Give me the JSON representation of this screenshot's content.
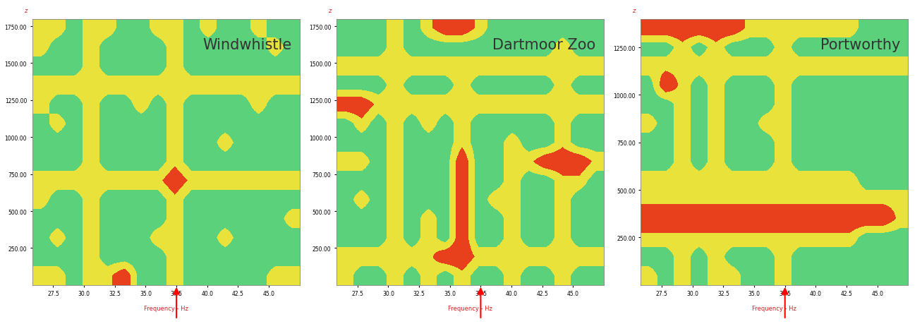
{
  "chart_data": [
    {
      "type": "heatmap",
      "title": "Windwhistle",
      "x_label": "Frequency - Hz",
      "y_label": "z",
      "xlim": [
        25.8,
        47.5
      ],
      "ylim": [
        0,
        1800
      ],
      "xticks": [
        27.5,
        {
          "value": 30,
          "label": "30.0"
        },
        32.5,
        {
          "value": 35,
          "label": "35.0"
        },
        37.5,
        {
          "value": 40,
          "label": "40.0"
        },
        42.5,
        {
          "value": 45,
          "label": "45.0"
        }
      ],
      "yticks": [
        {
          "value": 250,
          "label": "250.00"
        },
        {
          "value": 500,
          "label": "500.00"
        },
        {
          "value": 750,
          "label": "750.00"
        },
        {
          "value": 1000,
          "label": "1000.00"
        },
        {
          "value": 1250,
          "label": "1250.00"
        },
        {
          "value": 1500,
          "label": "1500.00"
        },
        {
          "value": 1750,
          "label": "1750.00"
        }
      ],
      "colors": [
        "#2a6fd6",
        "#5ad17a",
        "#e8e23a",
        "#e8401c"
      ],
      "clim": [
        0,
        3
      ],
      "arrow_x": 37.5,
      "cells": [
        [
          2,
          2,
          1,
          2,
          2,
          3,
          1,
          1,
          2,
          1,
          1,
          1,
          1,
          1,
          2,
          2
        ],
        [
          1,
          1,
          1,
          2,
          1,
          1,
          1,
          1,
          2,
          1,
          1,
          1,
          1,
          1,
          1,
          1
        ],
        [
          1,
          2,
          1,
          2,
          1,
          1,
          1,
          2,
          2,
          1,
          1,
          2,
          1,
          1,
          1,
          1
        ],
        [
          1,
          1,
          1,
          2,
          1,
          1,
          1,
          1,
          2,
          1,
          1,
          1,
          1,
          1,
          1,
          2
        ],
        [
          2,
          1,
          1,
          2,
          1,
          1,
          1,
          1,
          2,
          1,
          1,
          1,
          1,
          1,
          1,
          1
        ],
        [
          2,
          2,
          2,
          2,
          2,
          2,
          2,
          2,
          3,
          2,
          2,
          2,
          2,
          2,
          2,
          2
        ],
        [
          1,
          1,
          1,
          2,
          1,
          1,
          1,
          1,
          2,
          1,
          1,
          1,
          1,
          1,
          1,
          1
        ],
        [
          1,
          1,
          1,
          2,
          1,
          1,
          1,
          1,
          2,
          1,
          1,
          2,
          1,
          1,
          1,
          1
        ],
        [
          1,
          2,
          1,
          2,
          1,
          1,
          1,
          1,
          2,
          1,
          1,
          1,
          1,
          1,
          1,
          1
        ],
        [
          2,
          1,
          1,
          2,
          1,
          1,
          2,
          1,
          2,
          1,
          1,
          1,
          1,
          2,
          1,
          1
        ],
        [
          2,
          2,
          2,
          2,
          2,
          2,
          2,
          2,
          2,
          2,
          2,
          2,
          2,
          2,
          2,
          2
        ],
        [
          1,
          1,
          1,
          2,
          1,
          1,
          1,
          1,
          2,
          1,
          1,
          1,
          1,
          1,
          1,
          1
        ],
        [
          2,
          1,
          1,
          2,
          1,
          1,
          1,
          1,
          2,
          1,
          1,
          1,
          1,
          1,
          2,
          1
        ],
        [
          2,
          2,
          1,
          2,
          2,
          1,
          1,
          2,
          2,
          1,
          2,
          1,
          1,
          2,
          1,
          1
        ]
      ]
    },
    {
      "type": "heatmap",
      "title": "Dartmoor Zoo",
      "x_label": "Frequency - Hz",
      "y_label": "z",
      "xlim": [
        25.8,
        47.5
      ],
      "ylim": [
        0,
        1800
      ],
      "xticks": [
        27.5,
        {
          "value": 30,
          "label": "30.0"
        },
        32.5,
        {
          "value": 35,
          "label": "35.0"
        },
        37.5,
        {
          "value": 40,
          "label": "40.0"
        },
        42.5,
        {
          "value": 45,
          "label": "45.0"
        }
      ],
      "yticks": [
        {
          "value": 250,
          "label": "250.00"
        },
        {
          "value": 500,
          "label": "500.00"
        },
        {
          "value": 750,
          "label": "750.00"
        },
        {
          "value": 1000,
          "label": "1000.00"
        },
        {
          "value": 1250,
          "label": "1250.00"
        },
        {
          "value": 1500,
          "label": "1500.00"
        },
        {
          "value": 1750,
          "label": "1750.00"
        }
      ],
      "colors": [
        "#2a6fd6",
        "#5ad17a",
        "#e8e23a",
        "#e8401c"
      ],
      "clim": [
        0,
        3
      ],
      "arrow_x": 37.5,
      "cells": [
        [
          2,
          1,
          1,
          2,
          1,
          2,
          1,
          2,
          1,
          1,
          2,
          1,
          1,
          2,
          1,
          1
        ],
        [
          2,
          2,
          2,
          2,
          2,
          2,
          3,
          3,
          2,
          2,
          2,
          2,
          2,
          2,
          2,
          2
        ],
        [
          1,
          1,
          1,
          2,
          1,
          2,
          1,
          3,
          1,
          1,
          2,
          1,
          1,
          2,
          1,
          1
        ],
        [
          1,
          1,
          1,
          2,
          1,
          2,
          1,
          3,
          1,
          1,
          2,
          1,
          1,
          2,
          1,
          1
        ],
        [
          1,
          2,
          1,
          2,
          1,
          1,
          1,
          3,
          1,
          2,
          2,
          1,
          1,
          2,
          1,
          1
        ],
        [
          1,
          1,
          1,
          2,
          1,
          1,
          1,
          3,
          1,
          1,
          2,
          1,
          1,
          2,
          2,
          1
        ],
        [
          2,
          2,
          1,
          2,
          1,
          1,
          1,
          3,
          1,
          1,
          2,
          2,
          3,
          3,
          3,
          2
        ],
        [
          1,
          1,
          1,
          2,
          1,
          1,
          1,
          2,
          1,
          1,
          2,
          1,
          1,
          2,
          1,
          1
        ],
        [
          1,
          2,
          1,
          2,
          1,
          2,
          1,
          2,
          1,
          1,
          1,
          1,
          1,
          2,
          1,
          1
        ],
        [
          3,
          3,
          2,
          2,
          2,
          2,
          2,
          2,
          2,
          2,
          2,
          2,
          2,
          2,
          2,
          2
        ],
        [
          1,
          1,
          1,
          2,
          1,
          1,
          1,
          2,
          1,
          1,
          1,
          1,
          1,
          2,
          1,
          1
        ],
        [
          2,
          2,
          2,
          2,
          2,
          2,
          2,
          2,
          2,
          2,
          2,
          2,
          2,
          2,
          2,
          2
        ],
        [
          1,
          1,
          1,
          2,
          1,
          1,
          1,
          1,
          1,
          1,
          1,
          1,
          1,
          2,
          1,
          1
        ],
        [
          1,
          1,
          1,
          2,
          1,
          2,
          3,
          3,
          2,
          1,
          1,
          1,
          1,
          1,
          1,
          1
        ]
      ]
    },
    {
      "type": "heatmap",
      "title": "Portworthy",
      "x_label": "Frequency - Hz",
      "y_label": "z",
      "xlim": [
        25.8,
        47.5
      ],
      "ylim": [
        0,
        1400
      ],
      "xticks": [
        27.5,
        {
          "value": 30,
          "label": "30.0"
        },
        32.5,
        {
          "value": 35,
          "label": "35.0"
        },
        37.5,
        {
          "value": 40,
          "label": "40.0"
        },
        42.5,
        {
          "value": 45,
          "label": "45.0"
        }
      ],
      "yticks": [
        {
          "value": 250,
          "label": "250.00"
        },
        {
          "value": 500,
          "label": "500.00"
        },
        {
          "value": 750,
          "label": "750.00"
        },
        {
          "value": 1000,
          "label": "1000.00"
        },
        {
          "value": 1250,
          "label": "1250.00"
        }
      ],
      "colors": [
        "#2a6fd6",
        "#5ad17a",
        "#e8e23a",
        "#e8401c"
      ],
      "clim": [
        0,
        3
      ],
      "arrow_x": 37.5,
      "cells": [
        [
          2,
          1,
          2,
          1,
          2,
          2,
          1,
          1,
          2,
          1,
          1,
          1,
          1,
          1,
          1,
          1
        ],
        [
          1,
          1,
          2,
          1,
          2,
          1,
          1,
          1,
          2,
          1,
          1,
          1,
          1,
          1,
          1,
          1
        ],
        [
          2,
          2,
          2,
          2,
          2,
          2,
          2,
          2,
          2,
          2,
          2,
          2,
          2,
          1,
          1,
          1
        ],
        [
          3,
          3,
          3,
          3,
          3,
          3,
          3,
          3,
          3,
          3,
          3,
          3,
          3,
          3,
          3,
          2
        ],
        [
          2,
          2,
          2,
          2,
          2,
          2,
          2,
          2,
          2,
          2,
          2,
          2,
          2,
          2,
          2,
          2
        ],
        [
          2,
          2,
          2,
          2,
          2,
          2,
          2,
          2,
          2,
          2,
          2,
          2,
          2,
          1,
          1,
          1
        ],
        [
          1,
          1,
          2,
          1,
          2,
          1,
          1,
          1,
          2,
          1,
          1,
          1,
          1,
          1,
          1,
          1
        ],
        [
          1,
          1,
          2,
          1,
          2,
          1,
          1,
          1,
          2,
          1,
          1,
          1,
          1,
          1,
          1,
          1
        ],
        [
          2,
          1,
          2,
          1,
          2,
          1,
          1,
          2,
          2,
          1,
          1,
          1,
          1,
          1,
          1,
          1
        ],
        [
          1,
          1,
          2,
          1,
          2,
          1,
          1,
          1,
          2,
          1,
          1,
          1,
          1,
          1,
          1,
          1
        ],
        [
          1,
          3,
          2,
          1,
          2,
          1,
          1,
          1,
          2,
          1,
          1,
          1,
          1,
          1,
          1,
          1
        ],
        [
          2,
          2,
          2,
          2,
          2,
          2,
          2,
          2,
          2,
          2,
          2,
          2,
          2,
          2,
          2,
          2
        ],
        [
          1,
          1,
          2,
          1,
          2,
          1,
          1,
          1,
          2,
          1,
          1,
          1,
          1,
          1,
          1,
          1
        ],
        [
          3,
          3,
          3,
          3,
          3,
          3,
          2,
          2,
          2,
          2,
          2,
          2,
          2,
          1,
          1,
          1
        ]
      ]
    }
  ]
}
